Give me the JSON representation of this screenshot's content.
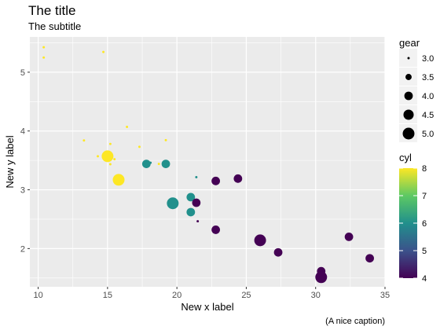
{
  "chart_data": {
    "type": "scatter",
    "title": "The title",
    "subtitle": "The subtitle",
    "xlabel": "New x label",
    "ylabel": "New y label",
    "caption": "(A nice caption)",
    "xlim": [
      9.4,
      35.0
    ],
    "ylim": [
      1.35,
      5.6
    ],
    "x_ticks": [
      10,
      15,
      20,
      25,
      30,
      35
    ],
    "y_ticks": [
      2,
      3,
      4,
      5
    ],
    "grid": true,
    "size_legend": {
      "title": "gear",
      "values": [
        3.0,
        3.5,
        4.0,
        4.5,
        5.0
      ],
      "labels": [
        "3.0",
        "3.5",
        "4.0",
        "4.5",
        "5.0"
      ]
    },
    "color_legend": {
      "title": "cyl",
      "min": 4,
      "max": 8,
      "ticks": [
        4,
        5,
        6,
        7,
        8
      ],
      "colors": [
        "#440154",
        "#3b528b",
        "#21908c",
        "#5dc963",
        "#fde725"
      ]
    },
    "points": [
      {
        "x": 21.0,
        "y": 2.62,
        "gear": 4,
        "cyl": 6
      },
      {
        "x": 21.0,
        "y": 2.875,
        "gear": 4,
        "cyl": 6
      },
      {
        "x": 22.8,
        "y": 2.32,
        "gear": 4,
        "cyl": 4
      },
      {
        "x": 21.4,
        "y": 3.215,
        "gear": 3,
        "cyl": 6
      },
      {
        "x": 18.7,
        "y": 3.44,
        "gear": 3,
        "cyl": 8
      },
      {
        "x": 18.1,
        "y": 3.46,
        "gear": 3,
        "cyl": 6
      },
      {
        "x": 14.3,
        "y": 3.57,
        "gear": 3,
        "cyl": 8
      },
      {
        "x": 24.4,
        "y": 3.19,
        "gear": 4,
        "cyl": 4
      },
      {
        "x": 22.8,
        "y": 3.15,
        "gear": 4,
        "cyl": 4
      },
      {
        "x": 19.2,
        "y": 3.44,
        "gear": 4,
        "cyl": 6
      },
      {
        "x": 17.8,
        "y": 3.44,
        "gear": 4,
        "cyl": 6
      },
      {
        "x": 16.4,
        "y": 4.07,
        "gear": 3,
        "cyl": 8
      },
      {
        "x": 17.3,
        "y": 3.73,
        "gear": 3,
        "cyl": 8
      },
      {
        "x": 15.2,
        "y": 3.78,
        "gear": 3,
        "cyl": 8
      },
      {
        "x": 10.4,
        "y": 5.25,
        "gear": 3,
        "cyl": 8
      },
      {
        "x": 10.4,
        "y": 5.424,
        "gear": 3,
        "cyl": 8
      },
      {
        "x": 14.7,
        "y": 5.345,
        "gear": 3,
        "cyl": 8
      },
      {
        "x": 32.4,
        "y": 2.2,
        "gear": 4,
        "cyl": 4
      },
      {
        "x": 30.4,
        "y": 1.615,
        "gear": 4,
        "cyl": 4
      },
      {
        "x": 33.9,
        "y": 1.835,
        "gear": 4,
        "cyl": 4
      },
      {
        "x": 21.5,
        "y": 2.465,
        "gear": 3,
        "cyl": 4
      },
      {
        "x": 15.5,
        "y": 3.52,
        "gear": 3,
        "cyl": 8
      },
      {
        "x": 15.2,
        "y": 3.435,
        "gear": 3,
        "cyl": 8
      },
      {
        "x": 13.3,
        "y": 3.84,
        "gear": 3,
        "cyl": 8
      },
      {
        "x": 19.2,
        "y": 3.845,
        "gear": 3,
        "cyl": 8
      },
      {
        "x": 27.3,
        "y": 1.935,
        "gear": 4,
        "cyl": 4
      },
      {
        "x": 26.0,
        "y": 2.14,
        "gear": 5,
        "cyl": 4
      },
      {
        "x": 30.4,
        "y": 1.513,
        "gear": 5,
        "cyl": 4
      },
      {
        "x": 15.8,
        "y": 3.17,
        "gear": 5,
        "cyl": 8
      },
      {
        "x": 19.7,
        "y": 2.77,
        "gear": 5,
        "cyl": 6
      },
      {
        "x": 15.0,
        "y": 3.57,
        "gear": 5,
        "cyl": 8
      },
      {
        "x": 21.4,
        "y": 2.78,
        "gear": 4,
        "cyl": 4
      }
    ]
  }
}
